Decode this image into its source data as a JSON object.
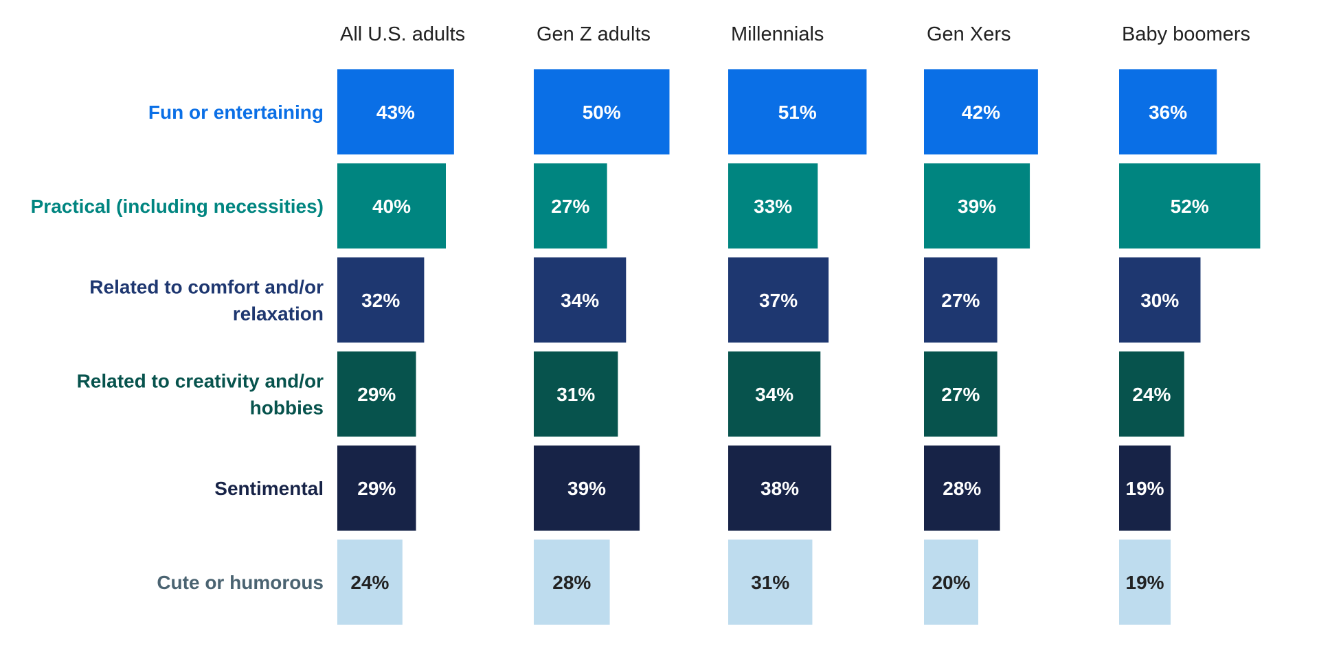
{
  "chart_data": {
    "type": "bar",
    "orientation": "horizontal",
    "layout": "small-multiples",
    "groups": [
      "All U.S. adults",
      "Gen Z adults",
      "Millennials",
      "Gen Xers",
      "Baby boomers"
    ],
    "categories": [
      [
        "Fun or entertaining"
      ],
      [
        "Practical (including necessities)"
      ],
      [
        "Related to comfort and/or",
        "relaxation"
      ],
      [
        "Related to creativity and/or",
        "hobbies"
      ],
      [
        "Sentimental"
      ],
      [
        "Cute or humorous"
      ]
    ],
    "category_colors": [
      "#0a6fe6",
      "#008580",
      "#1e3770",
      "#07534d",
      "#172347",
      "#bedcee"
    ],
    "label_colors": [
      "#0a6fe6",
      "#008580",
      "#1e3770",
      "#07534d",
      "#172347",
      "#4a6371"
    ],
    "value_label_colors": [
      "#ffffff",
      "#ffffff",
      "#ffffff",
      "#ffffff",
      "#ffffff",
      "#222222"
    ],
    "values": [
      [
        43,
        50,
        51,
        42,
        36
      ],
      [
        40,
        27,
        33,
        39,
        52
      ],
      [
        32,
        34,
        37,
        27,
        30
      ],
      [
        29,
        31,
        34,
        27,
        24
      ],
      [
        29,
        39,
        38,
        28,
        19
      ],
      [
        24,
        28,
        31,
        20,
        19
      ]
    ],
    "value_suffix": "%",
    "xlim": [
      0,
      100
    ],
    "legend": "none",
    "grid": false
  }
}
